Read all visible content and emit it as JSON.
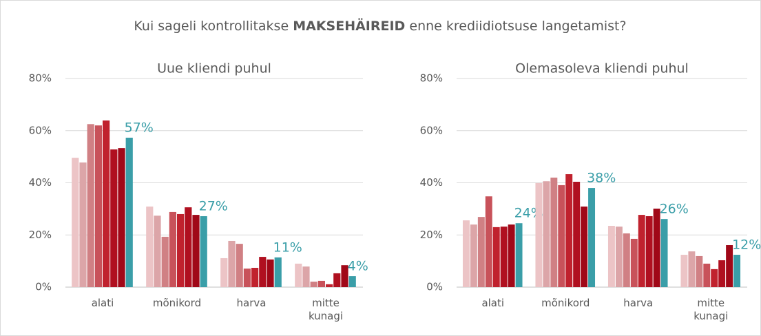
{
  "title": {
    "before": "Kui sageli kontrollitakse",
    "bold": "MAKSEHÄIREID",
    "after": "enne krediidiotsuse langetamist?"
  },
  "chart_data": [
    {
      "type": "bar",
      "title": "Uue kliendi puhul",
      "categories": [
        "alati",
        "mõnikord",
        "harva",
        "mitte kunagi"
      ],
      "ylim": [
        0,
        80
      ],
      "yticks": [
        {
          "value": 0,
          "label": "0%"
        },
        {
          "value": 20,
          "label": "20%"
        },
        {
          "value": 40,
          "label": "40%"
        },
        {
          "value": 60,
          "label": "60%"
        },
        {
          "value": 80,
          "label": "80%"
        }
      ],
      "grid": true,
      "series": [
        {
          "color": "#ecc4c6",
          "values": [
            49.6,
            30.9,
            11.1,
            9.0
          ]
        },
        {
          "color": "#dca5a8",
          "values": [
            47.8,
            27.4,
            17.7,
            7.9
          ]
        },
        {
          "color": "#d08084",
          "values": [
            62.5,
            19.3,
            16.6,
            2.1
          ]
        },
        {
          "color": "#c8525a",
          "values": [
            62.0,
            28.8,
            7.1,
            2.4
          ]
        },
        {
          "color": "#c0222e",
          "values": [
            63.9,
            28.0,
            7.4,
            1.1
          ]
        },
        {
          "color": "#b01020",
          "values": [
            52.8,
            30.6,
            11.6,
            5.3
          ]
        },
        {
          "color": "#a00818",
          "values": [
            53.3,
            27.7,
            10.6,
            8.4
          ]
        },
        {
          "color": "#3a9ea8",
          "values": [
            57.3,
            27.2,
            11.4,
            4.2
          ],
          "value_labels": [
            "57%",
            "27%",
            "11%",
            "4%"
          ]
        }
      ]
    },
    {
      "type": "bar",
      "title": "Olemasoleva kliendi puhul",
      "categories": [
        "alati",
        "mõnikord",
        "harva",
        "mitte kunagi"
      ],
      "ylim": [
        0,
        80
      ],
      "yticks": [
        {
          "value": 0,
          "label": "0%"
        },
        {
          "value": 20,
          "label": "20%"
        },
        {
          "value": 40,
          "label": "40%"
        },
        {
          "value": 60,
          "label": "60%"
        },
        {
          "value": 80,
          "label": "80%"
        }
      ],
      "grid": true,
      "series": [
        {
          "color": "#ecc4c6",
          "values": [
            25.6,
            39.9,
            23.5,
            12.4
          ]
        },
        {
          "color": "#dca5a8",
          "values": [
            24.0,
            40.6,
            23.2,
            13.7
          ]
        },
        {
          "color": "#d08084",
          "values": [
            26.9,
            42.0,
            20.6,
            11.9
          ]
        },
        {
          "color": "#c8525a",
          "values": [
            34.8,
            39.1,
            18.5,
            9.0
          ]
        },
        {
          "color": "#c0222e",
          "values": [
            23.0,
            43.3,
            27.7,
            6.9
          ]
        },
        {
          "color": "#b01020",
          "values": [
            23.2,
            40.4,
            27.2,
            10.3
          ]
        },
        {
          "color": "#a00818",
          "values": [
            24.0,
            30.9,
            30.1,
            16.1
          ]
        },
        {
          "color": "#3a9ea8",
          "values": [
            24.5,
            38.0,
            26.1,
            12.4
          ],
          "value_labels": [
            "24%",
            "38%",
            "26%",
            "12%"
          ]
        }
      ]
    }
  ]
}
